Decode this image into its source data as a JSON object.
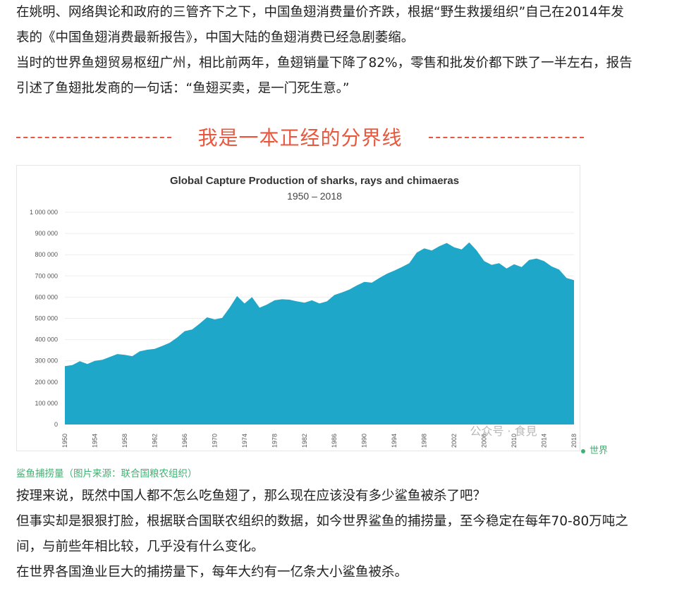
{
  "article": {
    "paragraph1": "在姚明、网络舆论和政府的三管齐下之下，中国鱼翅消费量价齐跌，根据“野生救援组织”自己在2014年发表的《中国鱼翅消费最新报告》，中国大陆的鱼翅消费已经急剧萎缩。",
    "paragraph2": "当时的世界鱼翅贸易枢纽广州，相比前两年，鱼翅销量下降了82%，零售和批发价都下跌了一半左右，报告引述了鱼翅批发商的一句话：“鱼翅买卖，是一门死生意。”",
    "divider_text": "我是一本正经的分界线",
    "image_caption": "鲨鱼捕捞量（图片来源：联合国粮农组织）",
    "legend_label": "世界",
    "watermark": "公众号 · 食見",
    "paragraph3": "按理来说，既然中国人都不怎么吃鱼翅了，那么现在应该没有多少鲨鱼被杀了吧？",
    "paragraph4": "但事实却是狠狠打脸，根据联合国联农组织的数据，如今世界鲨鱼的捕捞量，至今稳定在每年70-80万吨之间，与前些年相比较，几乎没有什么变化。",
    "paragraph5": "在世界各国渔业巨大的捕捞量下，每年大约有一亿条大小鲨鱼被杀。"
  },
  "colors": {
    "divider": "#e8583f",
    "caption": "#3cb371",
    "area": "#1ea7c8"
  },
  "chart_data": {
    "type": "area",
    "title": "Global Capture Production of sharks, rays and chimaeras",
    "subtitle": "1950 – 2018",
    "ylim": [
      0,
      1000000
    ],
    "yticks": [
      "0",
      "100 000",
      "200 000",
      "300 000",
      "400 000",
      "500 000",
      "600 000",
      "700 000",
      "800 000",
      "900 000",
      "1 000 000"
    ],
    "xticks": [
      "1950",
      "1954",
      "1958",
      "1962",
      "1966",
      "1970",
      "1974",
      "1978",
      "1982",
      "1986",
      "1990",
      "1994",
      "1998",
      "2002",
      "2006",
      "2010",
      "2014",
      "2018"
    ],
    "x": [
      1950,
      1951,
      1952,
      1953,
      1954,
      1955,
      1956,
      1957,
      1958,
      1959,
      1960,
      1961,
      1962,
      1963,
      1964,
      1965,
      1966,
      1967,
      1968,
      1969,
      1970,
      1971,
      1972,
      1973,
      1974,
      1975,
      1976,
      1977,
      1978,
      1979,
      1980,
      1981,
      1982,
      1983,
      1984,
      1985,
      1986,
      1987,
      1988,
      1989,
      1990,
      1991,
      1992,
      1993,
      1994,
      1995,
      1996,
      1997,
      1998,
      1999,
      2000,
      2001,
      2002,
      2003,
      2004,
      2005,
      2006,
      2007,
      2008,
      2009,
      2010,
      2011,
      2012,
      2013,
      2014,
      2015,
      2016,
      2017,
      2018
    ],
    "values": [
      275000,
      280000,
      298000,
      285000,
      300000,
      305000,
      318000,
      332000,
      328000,
      322000,
      345000,
      352000,
      356000,
      370000,
      385000,
      410000,
      440000,
      448000,
      475000,
      505000,
      495000,
      502000,
      550000,
      605000,
      570000,
      600000,
      550000,
      565000,
      585000,
      590000,
      588000,
      580000,
      574000,
      585000,
      570000,
      580000,
      610000,
      622000,
      636000,
      655000,
      672000,
      668000,
      690000,
      710000,
      725000,
      742000,
      760000,
      810000,
      830000,
      820000,
      840000,
      855000,
      835000,
      825000,
      858000,
      820000,
      770000,
      752000,
      760000,
      735000,
      755000,
      742000,
      775000,
      782000,
      770000,
      745000,
      730000,
      690000,
      680000
    ]
  }
}
